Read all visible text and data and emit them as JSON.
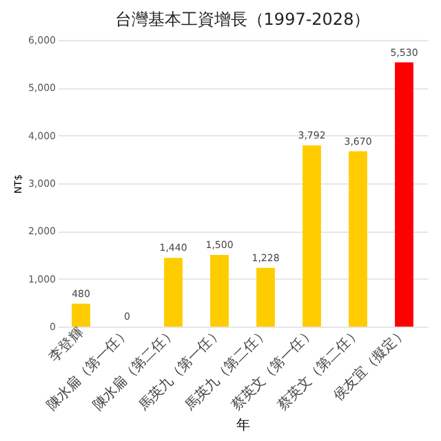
{
  "chart_data": {
    "type": "bar",
    "title": "台灣基本工資增長（1997-2028）",
    "xlabel": "年",
    "ylabel": "NT$",
    "categories": [
      "李登輝",
      "陳水扁（第一任）",
      "陳水扁（第二任）",
      "馬英九（第一任）",
      "馬英九（第二任）",
      "蔡英文（第一任）",
      "蔡英文（第二任）",
      "侯友宜（擬定）"
    ],
    "values": [
      480,
      0,
      1440,
      1500,
      1228,
      3792,
      3670,
      5530
    ],
    "value_labels": [
      "480",
      "0",
      "1,440",
      "1,500",
      "1,228",
      "3,792",
      "3,670",
      "5,530"
    ],
    "colors": [
      "#ffcc00",
      "#ffcc00",
      "#ffcc00",
      "#ffcc00",
      "#ffcc00",
      "#ffcc00",
      "#ffcc00",
      "#ff0000"
    ],
    "ylim": [
      0,
      6000
    ],
    "yticks": [
      0,
      {
        "value": 1000,
        "label": "1,000"
      },
      {
        "value": 2000,
        "label": "2,000"
      },
      {
        "value": 3000,
        "label": "3,000"
      },
      {
        "value": 4000,
        "label": "4,000"
      },
      {
        "value": 5000,
        "label": "5,000"
      },
      {
        "value": 6000,
        "label": "6,000"
      }
    ],
    "grid": "y"
  }
}
